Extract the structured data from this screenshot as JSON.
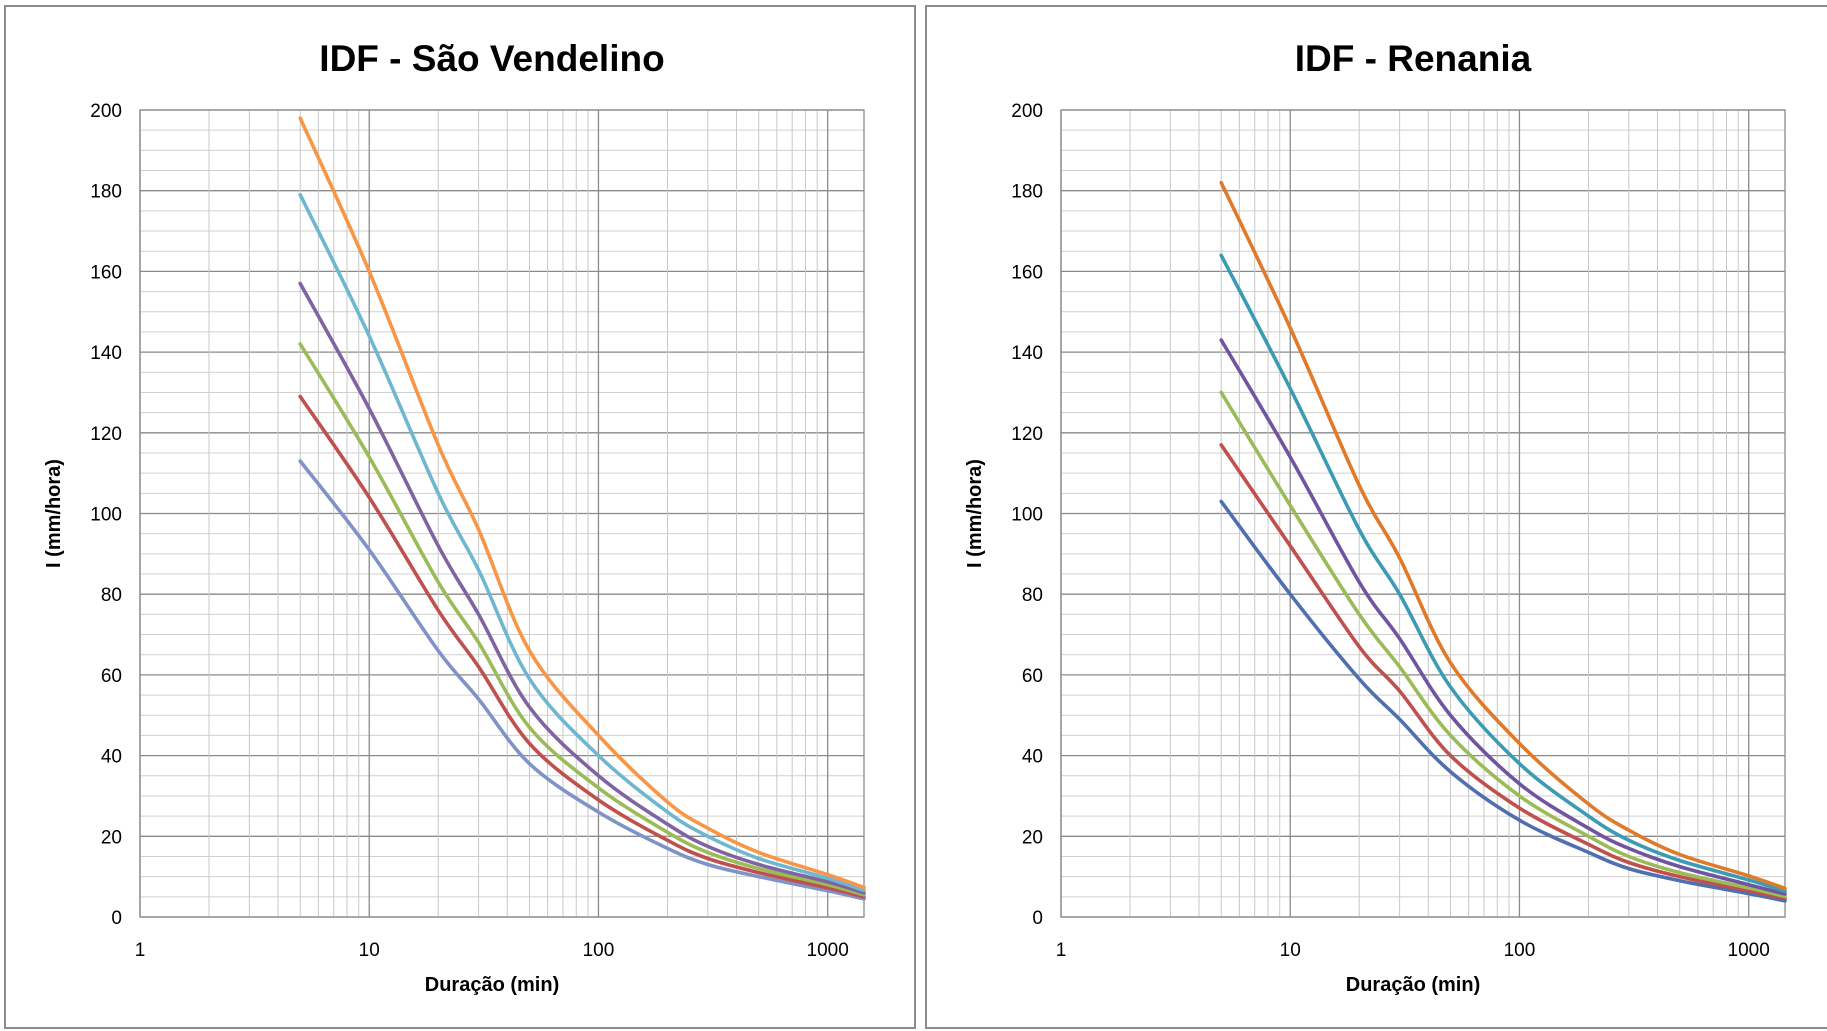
{
  "chart_data": [
    {
      "type": "line",
      "title": "IDF - São Vendelino",
      "xlabel": "Duração (min)",
      "ylabel": "I (mm/hora)",
      "x_scale": "log",
      "xlim": [
        1,
        1440
      ],
      "ylim": [
        0,
        200
      ],
      "x_ticks": [
        "1",
        "10",
        "100",
        "1000"
      ],
      "y_ticks": [
        "0",
        "20",
        "40",
        "60",
        "80",
        "100",
        "120",
        "140",
        "160",
        "180",
        "200"
      ],
      "grid": true,
      "legend": "none",
      "x": [
        5,
        10,
        20,
        30,
        50,
        100,
        200,
        300,
        500,
        1000,
        1440
      ],
      "series": [
        {
          "color": "#7f93c9",
          "values": [
            113,
            91,
            66,
            54,
            38,
            26,
            17,
            13,
            10,
            6.5,
            4.5
          ]
        },
        {
          "color": "#c0504d",
          "values": [
            129,
            104,
            76,
            62,
            43,
            29,
            19,
            14.5,
            11,
            7.2,
            5
          ]
        },
        {
          "color": "#9bbb59",
          "values": [
            142,
            114,
            83,
            68,
            47,
            32,
            21,
            16,
            12,
            8,
            5.5
          ]
        },
        {
          "color": "#8064a2",
          "values": [
            157,
            126,
            92,
            75,
            52,
            35,
            23,
            17.5,
            13,
            8.7,
            6
          ]
        },
        {
          "color": "#6fb6d1",
          "values": [
            179,
            144,
            105,
            86,
            59,
            40,
            26,
            20,
            14.5,
            9.6,
            6.6
          ]
        },
        {
          "color": "#f79646",
          "values": [
            198,
            160,
            117,
            96,
            66,
            45,
            28.5,
            22,
            16,
            10.5,
            7.3
          ]
        }
      ]
    },
    {
      "type": "line",
      "title": "IDF - Renania",
      "xlabel": "Duração (min)",
      "ylabel": "I (mm/hora)",
      "x_scale": "log",
      "xlim": [
        1,
        1440
      ],
      "ylim": [
        0,
        200
      ],
      "x_ticks": [
        "1",
        "10",
        "100",
        "1000"
      ],
      "y_ticks": [
        "0",
        "20",
        "40",
        "60",
        "80",
        "100",
        "120",
        "140",
        "160",
        "180",
        "200"
      ],
      "grid": true,
      "legend": "none",
      "x": [
        5,
        10,
        20,
        30,
        50,
        100,
        200,
        300,
        500,
        1000,
        1440
      ],
      "series": [
        {
          "color": "#4f6fb0",
          "values": [
            103,
            80,
            59,
            49,
            36,
            24,
            16,
            12,
            9,
            5.8,
            4
          ]
        },
        {
          "color": "#c0504d",
          "values": [
            117,
            92,
            67,
            56,
            40,
            27,
            18,
            13.5,
            10,
            6.5,
            4.6
          ]
        },
        {
          "color": "#9bbb59",
          "values": [
            130,
            102,
            75,
            62,
            45,
            30,
            20,
            15,
            11,
            7.2,
            5.1
          ]
        },
        {
          "color": "#7054a0",
          "values": [
            143,
            114,
            83,
            69,
            50,
            33,
            22,
            17,
            12.5,
            8,
            5.7
          ]
        },
        {
          "color": "#3b9bb5",
          "values": [
            164,
            131,
            96,
            80,
            57,
            38,
            25,
            19,
            14,
            9.2,
            6.4
          ]
        },
        {
          "color": "#e07a2a",
          "values": [
            182,
            146,
            107,
            89,
            63,
            43,
            28,
            21.5,
            15.5,
            10.2,
            7.1
          ]
        }
      ]
    }
  ]
}
